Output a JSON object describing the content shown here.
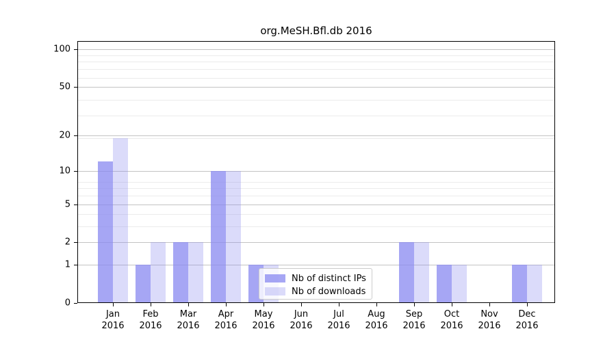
{
  "chart_data": {
    "type": "bar",
    "title": "org.MeSH.Bfl.db 2016",
    "categories": [
      "Jan",
      "Feb",
      "Mar",
      "Apr",
      "May",
      "Jun",
      "Jul",
      "Aug",
      "Sep",
      "Oct",
      "Nov",
      "Dec"
    ],
    "category_year": "2016",
    "series": [
      {
        "name": "Nb of distinct IPs",
        "color": "#8888f0",
        "alpha": 0.75,
        "values": [
          12,
          1,
          2,
          10,
          1,
          0,
          0,
          0,
          2,
          1,
          0,
          1
        ]
      },
      {
        "name": "Nb of downloads",
        "color": "#8888f0",
        "alpha": 0.3,
        "values": [
          19,
          2,
          2,
          10,
          1,
          0,
          0,
          0,
          2,
          1,
          0,
          1
        ]
      }
    ],
    "yscale": "log1p",
    "yticks": [
      0,
      1,
      2,
      5,
      10,
      20,
      50,
      100
    ],
    "minor_yticks": [
      2,
      3,
      4,
      5,
      6,
      7,
      8,
      19,
      29,
      39,
      59,
      69,
      79,
      89
    ],
    "ylim": [
      0,
      116
    ],
    "xlabel": "",
    "ylabel": "",
    "grid": true,
    "legend_position": "lower-center",
    "colors": {
      "major_gridline": "#c3c3c3",
      "minor_gridline": "#ebebeb",
      "axis": "#000000",
      "background": "#ffffff"
    }
  }
}
